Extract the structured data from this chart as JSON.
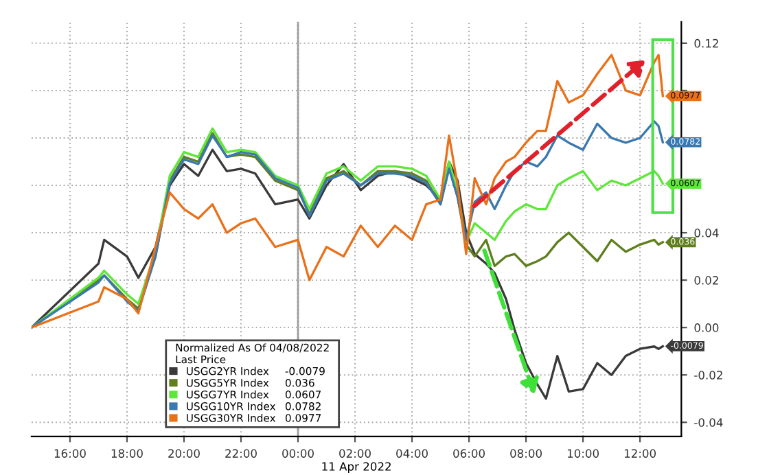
{
  "chart_data": {
    "type": "line",
    "xlabel": "11 Apr 2022",
    "legend_title": "Normalized As Of 04/08/2022\nLast Price",
    "x": [
      "2022-04-10T14:39",
      "2022-04-10T17:00",
      "2022-04-10T17:12",
      "2022-04-10T18:00",
      "2022-04-10T18:24",
      "2022-04-10T19:00",
      "2022-04-10T19:30",
      "2022-04-10T20:00",
      "2022-04-10T20:30",
      "2022-04-10T21:00",
      "2022-04-10T21:30",
      "2022-04-10T22:00",
      "2022-04-10T22:30",
      "2022-04-10T23:12",
      "2022-04-11T00:00",
      "2022-04-11T00:24",
      "2022-04-11T01:00",
      "2022-04-11T01:36",
      "2022-04-11T02:12",
      "2022-04-11T02:48",
      "2022-04-11T03:24",
      "2022-04-11T04:00",
      "2022-04-11T04:30",
      "2022-04-11T05:00",
      "2022-04-11T05:18",
      "2022-04-11T05:36",
      "2022-04-11T05:54",
      "2022-04-11T06:12",
      "2022-04-11T06:36",
      "2022-04-11T06:54",
      "2022-04-11T07:18",
      "2022-04-11T07:36",
      "2022-04-11T08:00",
      "2022-04-11T08:24",
      "2022-04-11T08:42",
      "2022-04-11T09:06",
      "2022-04-11T09:30",
      "2022-04-11T10:00",
      "2022-04-11T10:30",
      "2022-04-11T11:00",
      "2022-04-11T11:30",
      "2022-04-11T12:00",
      "2022-04-11T12:30",
      "2022-04-11T12:39",
      "2022-04-11T12:48"
    ],
    "series": [
      {
        "name": "USGG2YR Index",
        "color": "#3a3a3a",
        "values": [
          0,
          0.027,
          0.037,
          0.03,
          0.021,
          0.034,
          0.06,
          0.069,
          0.064,
          0.075,
          0.066,
          0.067,
          0.065,
          0.052,
          0.054,
          0.046,
          0.06,
          0.069,
          0.058,
          0.064,
          0.066,
          0.063,
          0.06,
          0.054,
          0.07,
          0.062,
          0.04,
          0.031,
          0.027,
          0.023,
          0.012,
          -0.001,
          -0.015,
          -0.024,
          -0.03,
          -0.012,
          -0.027,
          -0.026,
          -0.015,
          -0.02,
          -0.012,
          -0.009,
          -0.008,
          -0.009,
          -0.0079
        ],
        "value_labels": [
          null,
          null,
          null,
          null,
          null,
          null,
          null,
          null,
          null,
          null,
          null,
          null,
          null,
          null,
          null,
          null,
          null,
          null,
          null,
          null,
          null,
          null,
          null,
          null,
          null,
          null,
          null,
          null,
          null,
          null,
          null,
          null,
          null,
          null,
          null,
          null,
          null,
          null,
          null,
          null,
          null,
          null,
          null,
          null,
          "-0.0079"
        ]
      },
      {
        "name": "USGG5YR Index",
        "color": "#5f7f1e",
        "values": [
          0,
          0.02,
          0.022,
          0.012,
          0.008,
          0.03,
          0.062,
          0.072,
          0.07,
          0.082,
          0.072,
          0.073,
          0.072,
          0.062,
          0.058,
          0.048,
          0.063,
          0.066,
          0.06,
          0.066,
          0.066,
          0.065,
          0.062,
          0.052,
          0.068,
          0.055,
          0.035,
          0.03,
          0.037,
          0.026,
          0.03,
          0.031,
          0.026,
          0.028,
          0.03,
          0.036,
          0.04,
          0.034,
          0.028,
          0.037,
          0.032,
          0.035,
          0.037,
          0.035,
          0.036
        ],
        "value_labels": [
          null,
          null,
          null,
          null,
          null,
          null,
          null,
          null,
          null,
          null,
          null,
          null,
          null,
          null,
          null,
          null,
          null,
          null,
          null,
          null,
          null,
          null,
          null,
          null,
          null,
          null,
          null,
          null,
          null,
          null,
          null,
          null,
          null,
          null,
          null,
          null,
          null,
          null,
          null,
          null,
          null,
          null,
          null,
          null,
          "0.036"
        ]
      },
      {
        "name": "USGG7YR Index",
        "color": "#5ee63a",
        "values": [
          0,
          0.021,
          0.024,
          0.014,
          0.01,
          0.032,
          0.064,
          0.074,
          0.072,
          0.084,
          0.074,
          0.075,
          0.074,
          0.064,
          0.06,
          0.05,
          0.065,
          0.068,
          0.062,
          0.068,
          0.068,
          0.067,
          0.064,
          0.054,
          0.07,
          0.057,
          0.036,
          0.044,
          0.04,
          0.037,
          0.045,
          0.049,
          0.052,
          0.05,
          0.05,
          0.06,
          0.063,
          0.066,
          0.058,
          0.062,
          0.06,
          0.063,
          0.066,
          0.064,
          0.0607
        ],
        "value_labels": [
          null,
          null,
          null,
          null,
          null,
          null,
          null,
          null,
          null,
          null,
          null,
          null,
          null,
          null,
          null,
          null,
          null,
          null,
          null,
          null,
          null,
          null,
          null,
          null,
          null,
          null,
          null,
          null,
          null,
          null,
          null,
          null,
          null,
          null,
          null,
          null,
          null,
          null,
          null,
          null,
          null,
          null,
          null,
          null,
          "0.0607"
        ]
      },
      {
        "name": "USGG10YR Index",
        "color": "#3a78b0",
        "values": [
          0,
          0.019,
          0.022,
          0.011,
          0.007,
          0.03,
          0.061,
          0.071,
          0.069,
          0.081,
          0.072,
          0.074,
          0.073,
          0.063,
          0.059,
          0.047,
          0.062,
          0.065,
          0.06,
          0.065,
          0.065,
          0.064,
          0.061,
          0.052,
          0.067,
          0.055,
          0.037,
          0.053,
          0.057,
          0.05,
          0.06,
          0.066,
          0.07,
          0.068,
          0.072,
          0.081,
          0.078,
          0.075,
          0.086,
          0.08,
          0.078,
          0.08,
          0.087,
          0.085,
          0.0782
        ],
        "value_labels": [
          null,
          null,
          null,
          null,
          null,
          null,
          null,
          null,
          null,
          null,
          null,
          null,
          null,
          null,
          null,
          null,
          null,
          null,
          null,
          null,
          null,
          null,
          null,
          null,
          null,
          null,
          null,
          null,
          null,
          null,
          null,
          null,
          null,
          null,
          null,
          null,
          null,
          null,
          null,
          null,
          null,
          null,
          null,
          null,
          "0.0782"
        ]
      },
      {
        "name": "USGG30YR Index",
        "color": "#e8711a",
        "values": [
          0,
          0.011,
          0.017,
          0.012,
          0.006,
          0.034,
          0.057,
          0.05,
          0.046,
          0.052,
          0.04,
          0.044,
          0.046,
          0.034,
          0.037,
          0.02,
          0.034,
          0.03,
          0.043,
          0.034,
          0.043,
          0.037,
          0.052,
          0.054,
          0.081,
          0.06,
          0.031,
          0.063,
          0.052,
          0.063,
          0.07,
          0.072,
          0.078,
          0.083,
          0.083,
          0.104,
          0.095,
          0.098,
          0.107,
          0.115,
          0.1,
          0.098,
          0.112,
          0.115,
          0.0977
        ],
        "value_labels": [
          null,
          null,
          null,
          null,
          null,
          null,
          null,
          null,
          null,
          null,
          null,
          null,
          null,
          null,
          null,
          null,
          null,
          null,
          null,
          null,
          null,
          null,
          null,
          null,
          null,
          null,
          null,
          null,
          null,
          null,
          null,
          null,
          null,
          null,
          null,
          null,
          null,
          null,
          null,
          null,
          null,
          null,
          null,
          null,
          "0.0977"
        ]
      }
    ],
    "xlim": [
      "2022-04-10T14:39",
      "2022-04-11T13:27"
    ],
    "xticks": [
      {
        "value": "2022-04-10T16:00",
        "label": "16:00"
      },
      {
        "value": "2022-04-10T18:00",
        "label": "18:00"
      },
      {
        "value": "2022-04-10T20:00",
        "label": "20:00"
      },
      {
        "value": "2022-04-10T22:00",
        "label": "22:00"
      },
      {
        "value": "2022-04-11T00:00",
        "label": "00:00"
      },
      {
        "value": "2022-04-11T02:00",
        "label": "02:00"
      },
      {
        "value": "2022-04-11T04:00",
        "label": "04:00"
      },
      {
        "value": "2022-04-11T06:00",
        "label": "06:00"
      },
      {
        "value": "2022-04-11T08:00",
        "label": "08:00"
      },
      {
        "value": "2022-04-11T10:00",
        "label": "10:00"
      },
      {
        "value": "2022-04-11T12:00",
        "label": "12:00"
      }
    ],
    "ylim": [
      -0.046,
      0.129
    ],
    "yticks": [
      {
        "value": -0.04,
        "label": "-0.04"
      },
      {
        "value": -0.02,
        "label": "-0.02"
      },
      {
        "value": 0.0,
        "label": "0.00"
      },
      {
        "value": 0.02,
        "label": "0.02"
      },
      {
        "value": 0.04,
        "label": "0.04"
      },
      {
        "value": 0.06,
        "label": null
      },
      {
        "value": 0.08,
        "label": null
      },
      {
        "value": 0.1,
        "label": null
      },
      {
        "value": 0.12,
        "label": "0.12"
      }
    ],
    "ref_lines": [
      {
        "axis": "x",
        "value": "2022-04-11T00:00",
        "color": "#999999"
      }
    ],
    "grid": true,
    "legend": "bottom",
    "line_style": "solid",
    "marker": "none"
  }
}
